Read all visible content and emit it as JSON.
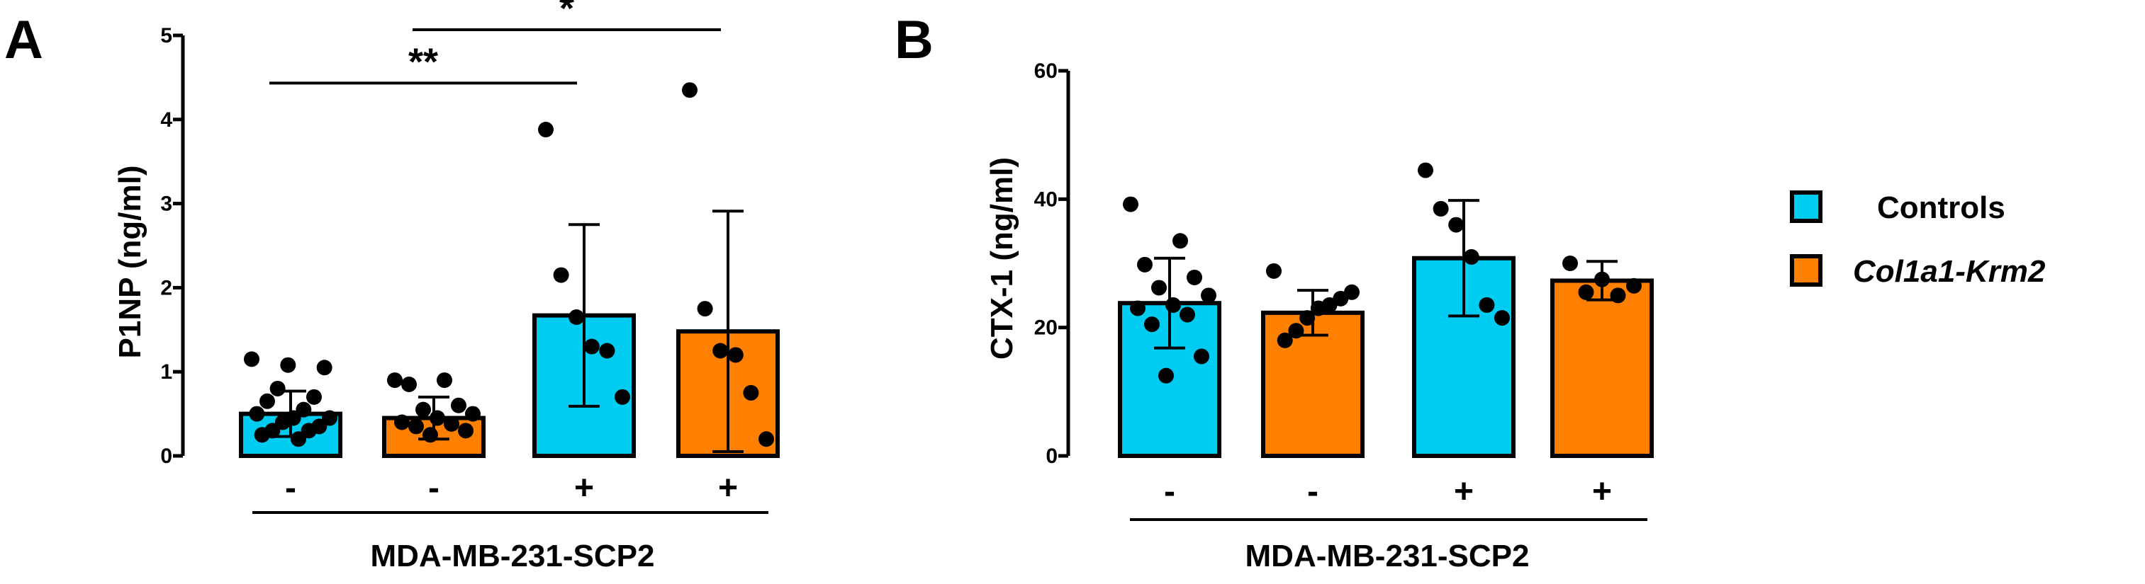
{
  "colors": {
    "controls": "#00ccf2",
    "krm2": "#ff8000",
    "ink": "#000000"
  },
  "legend": [
    {
      "label": "Controls",
      "color_key": "controls",
      "italic": false
    },
    {
      "label": "Col1a1-Krm2",
      "color_key": "krm2",
      "italic": true
    }
  ],
  "chart_data": [
    {
      "panel": "A",
      "type": "bar",
      "ylabel": "P1NP (ng/ml)",
      "xlabel": "MDA-MB-231-SCP2",
      "ylim": [
        0,
        5
      ],
      "yticks": [
        "0",
        "1",
        "2",
        "3",
        "4",
        "5"
      ],
      "categories": [
        "-",
        "-",
        "+",
        "+"
      ],
      "groups": [
        "Controls",
        "Col1a1-Krm2",
        "Controls",
        "Col1a1-Krm2"
      ],
      "values": [
        0.5,
        0.45,
        1.67,
        1.48
      ],
      "sd": [
        0.27,
        0.25,
        1.08,
        1.43
      ],
      "points": [
        [
          1.15,
          1.08,
          1.05,
          0.8,
          0.7,
          0.65,
          0.55,
          0.5,
          0.45,
          0.45,
          0.4,
          0.35,
          0.3,
          0.3,
          0.25,
          0.2
        ],
        [
          0.9,
          0.9,
          0.85,
          0.6,
          0.55,
          0.5,
          0.45,
          0.4,
          0.38,
          0.35,
          0.3,
          0.25
        ],
        [
          3.88,
          2.15,
          1.65,
          1.3,
          1.25,
          0.7
        ],
        [
          4.35,
          1.75,
          1.25,
          1.2,
          0.75,
          0.2
        ]
      ],
      "significance": [
        {
          "from": 0,
          "to": 2,
          "label": "**",
          "y": 4.5
        },
        {
          "from": 1,
          "to": 3,
          "label": "*",
          "y": 5.0
        }
      ]
    },
    {
      "panel": "B",
      "type": "bar",
      "ylabel": "CTX-1 (ng/ml)",
      "xlabel": "MDA-MB-231-SCP2",
      "ylim": [
        0,
        60
      ],
      "yticks": [
        "0",
        "20",
        "40",
        "60"
      ],
      "categories": [
        "-",
        "-",
        "+",
        "+"
      ],
      "groups": [
        "Controls",
        "Col1a1-Krm2",
        "Controls",
        "Col1a1-Krm2"
      ],
      "values": [
        23.8,
        22.3,
        30.8,
        27.3
      ],
      "sd": [
        7.0,
        3.5,
        9.0,
        3.0
      ],
      "points": [
        [
          39.2,
          33.5,
          29.8,
          27.8,
          26.2,
          25.0,
          23.5,
          23.0,
          22.0,
          20.5,
          15.5,
          12.5
        ],
        [
          28.8,
          25.5,
          24.5,
          23.5,
          23.0,
          21.5,
          19.5,
          18.0
        ],
        [
          44.5,
          38.5,
          36.0,
          31.0,
          23.5,
          21.5
        ],
        [
          30.0,
          27.5,
          26.5,
          25.5,
          25.0
        ]
      ],
      "significance": []
    }
  ]
}
